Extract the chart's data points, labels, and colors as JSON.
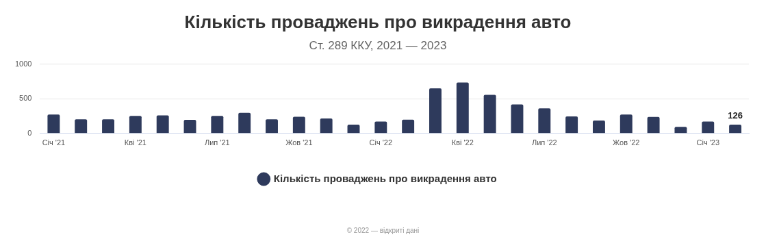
{
  "chart_data": {
    "type": "bar",
    "title": "Кількість проваджень про викрадення авто",
    "subtitle": "Ст. 289 ККУ, 2021 — 2023",
    "categories": [
      "Січ '21",
      null,
      null,
      "Кві '21",
      null,
      null,
      "Лип '21",
      null,
      null,
      "Жов '21",
      null,
      null,
      "Січ '22",
      null,
      null,
      "Кві '22",
      null,
      null,
      "Лип '22",
      null,
      null,
      "Жов '22",
      null,
      null,
      "Січ '23",
      null
    ],
    "series": [
      {
        "name": "Кількість проваджень про викрадення авто",
        "color": "#2e3a5c",
        "values": [
          273,
          204,
          204,
          253,
          261,
          196,
          253,
          298,
          204,
          241,
          216,
          127,
          172,
          198,
          651,
          733,
          556,
          418,
          362,
          246,
          185,
          272,
          237,
          95,
          172,
          126
        ],
        "value_labels": [
          null,
          null,
          null,
          null,
          null,
          null,
          null,
          null,
          null,
          null,
          null,
          null,
          null,
          null,
          null,
          null,
          null,
          null,
          null,
          null,
          null,
          null,
          null,
          null,
          null,
          "126"
        ]
      }
    ],
    "ylim": [
      0,
      1000
    ],
    "yticks": [
      0,
      500,
      1000
    ],
    "grid": "y",
    "legend": "bottom",
    "annotations": [
      "© 2022 — відкриті дані"
    ]
  }
}
